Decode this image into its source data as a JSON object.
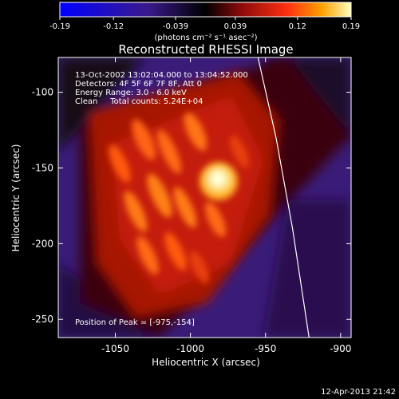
{
  "colorbar": {
    "tick_labels": [
      "-0.19",
      "-0.12",
      "-0.039",
      "0.039",
      "0.12",
      "0.19"
    ],
    "tick_values": [
      -0.19,
      -0.12,
      -0.039,
      0.039,
      0.12,
      0.19
    ],
    "range": [
      -0.19,
      0.19
    ],
    "units_label": "(photons cm⁻² s⁻¹ asec⁻²)",
    "stops": [
      "#0000ff",
      "#3a1a8c",
      "#000000",
      "#8a0a0a",
      "#ff3010",
      "#ffa000",
      "#ffffc0"
    ]
  },
  "chart_data": {
    "type": "heatmap",
    "title": "Reconstructed RHESSI Image",
    "xlabel": "Heliocentric X (arcsec)",
    "ylabel": "Heliocentric Y (arcsec)",
    "xlim": [
      -1088,
      -893
    ],
    "ylim": [
      -262,
      -77
    ],
    "x_ticks": [
      -1050,
      -1000,
      -950,
      -900
    ],
    "x_tick_labels": [
      "-1050",
      "-1000",
      "-950",
      "-900"
    ],
    "y_ticks": [
      -100,
      -150,
      -200,
      -250
    ],
    "y_tick_labels": [
      "-100",
      "-150",
      "-200",
      "-250"
    ],
    "annotations": [
      "13-Oct-2002 13:02:04.000 to 13:04:52.000",
      "Detectors: 4F 5F 6F 7F 8F, Att 0",
      "Energy Range: 3.0 - 6.0 keV",
      "Clean     Total counts: 5.24E+04"
    ],
    "peak_label": "Position of Peak = [-975,-154]",
    "peak": [
      -975,
      -154
    ],
    "limb_points": [
      [
        -955,
        -77
      ],
      [
        -943,
        -130
      ],
      [
        -932,
        -190
      ],
      [
        -921,
        -262
      ]
    ],
    "limb_color": "#ffffff"
  },
  "timestamp": "12-Apr-2013 21:42"
}
